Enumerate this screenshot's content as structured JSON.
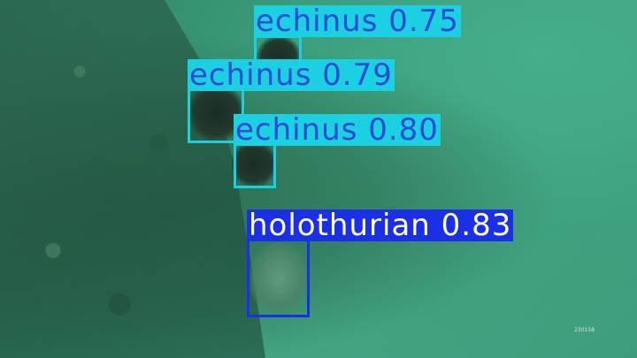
{
  "detections": [
    {
      "class": "echinus",
      "score": "0.75",
      "text": "echinus 0.75"
    },
    {
      "class": "echinus",
      "score": "0.79",
      "text": "echinus 0.79"
    },
    {
      "class": "echinus",
      "score": "0.80",
      "text": "echinus 0.80"
    },
    {
      "class": "holothurian",
      "score": "0.83",
      "text": "holothurian 0.83"
    }
  ],
  "colors": {
    "echinus_box": "#1bd0e0",
    "echinus_text": "#2a4bd6",
    "holothurian_box": "#1a2fe6",
    "holothurian_text": "#ffffff"
  },
  "frame_stamp": "230158"
}
